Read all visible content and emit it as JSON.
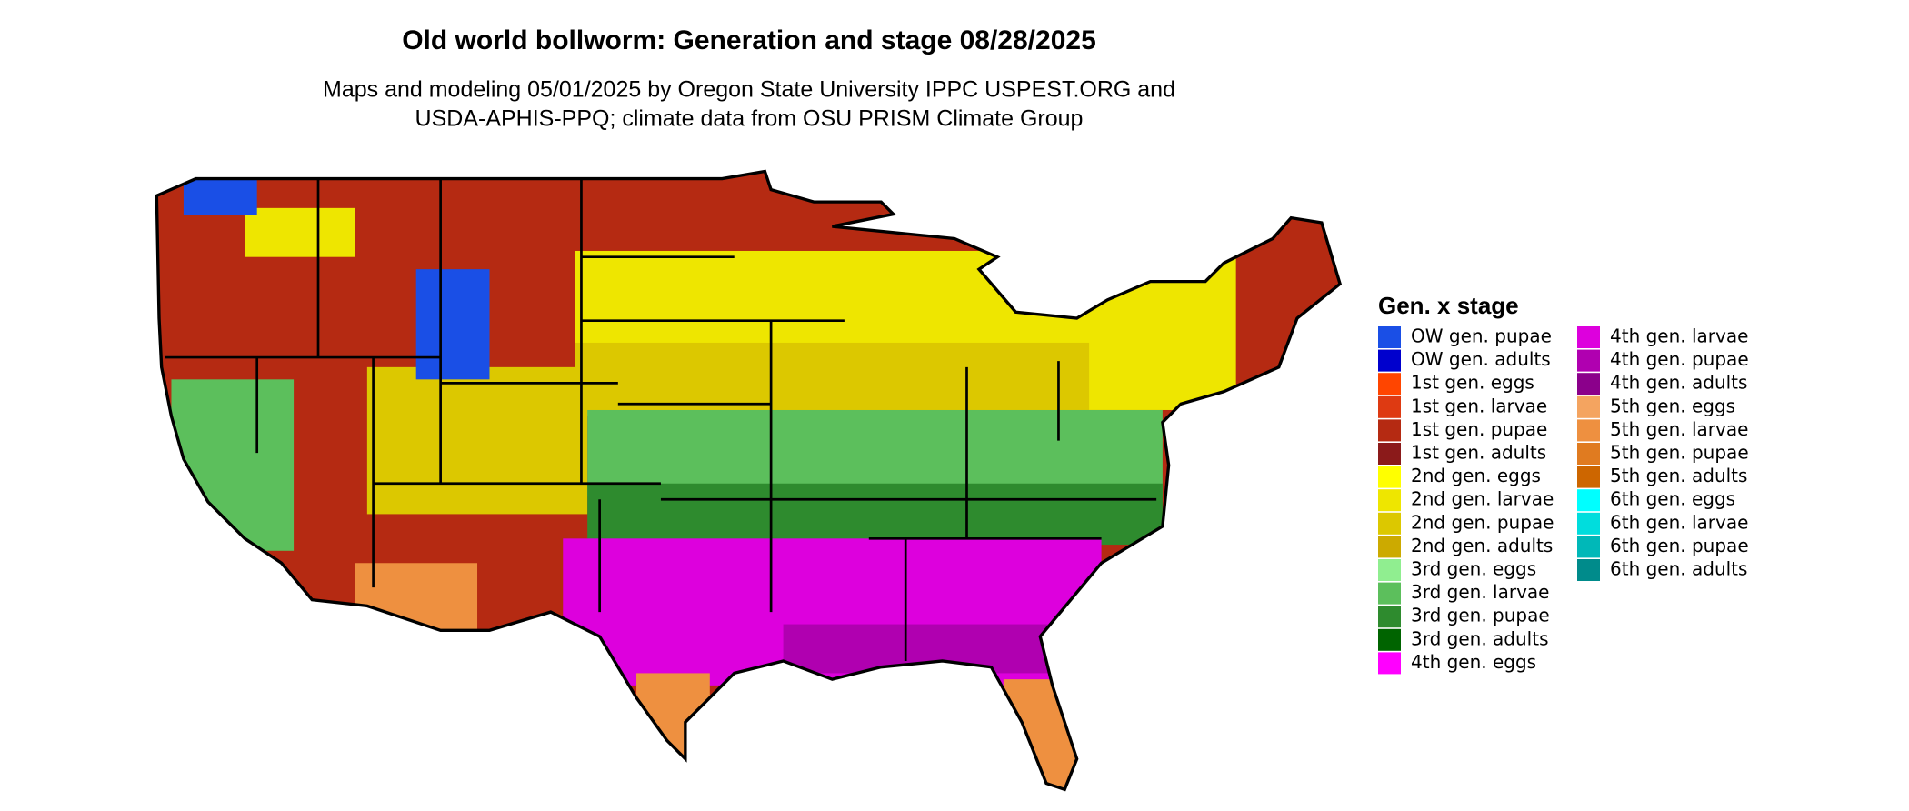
{
  "title": "Old world bollworm: Generation and stage 08/28/2025",
  "subtitle": [
    "Maps and modeling 05/01/2025 by Oregon State University IPPC USPEST.ORG and",
    "USDA-APHIS-PPQ; climate data from OSU PRISM Climate Group"
  ],
  "legend": {
    "title": "Gen. x stage",
    "items": [
      {
        "name": "OW gen. pupae",
        "color": "#1a4fe6"
      },
      {
        "name": "OW gen. adults",
        "color": "#0000cd"
      },
      {
        "name": "1st gen. eggs",
        "color": "#ff4500"
      },
      {
        "name": "1st gen. larvae",
        "color": "#de3a12"
      },
      {
        "name": "1st gen. pupae",
        "color": "#b52a12"
      },
      {
        "name": "1st gen. adults",
        "color": "#8b1a1a"
      },
      {
        "name": "2nd gen. eggs",
        "color": "#ffff00"
      },
      {
        "name": "2nd gen. larvae",
        "color": "#eee600"
      },
      {
        "name": "2nd gen. pupae",
        "color": "#dcc800"
      },
      {
        "name": "2nd gen. adults",
        "color": "#ccaa00"
      },
      {
        "name": "3rd gen. eggs",
        "color": "#90ee90"
      },
      {
        "name": "3rd gen. larvae",
        "color": "#5cbf5c"
      },
      {
        "name": "3rd gen. pupae",
        "color": "#2e8b2e"
      },
      {
        "name": "3rd gen. adults",
        "color": "#006400"
      },
      {
        "name": "4th gen. eggs",
        "color": "#ff00ff"
      },
      {
        "name": "4th gen. larvae",
        "color": "#dd00dd"
      },
      {
        "name": "4th gen. pupae",
        "color": "#b000b0"
      },
      {
        "name": "4th gen. adults",
        "color": "#8b008b"
      },
      {
        "name": "5th gen. eggs",
        "color": "#f4a460"
      },
      {
        "name": "5th gen. larvae",
        "color": "#ee9040"
      },
      {
        "name": "5th gen. pupae",
        "color": "#e07b20"
      },
      {
        "name": "5th gen. adults",
        "color": "#cd6600"
      },
      {
        "name": "6th gen. eggs",
        "color": "#00ffff"
      },
      {
        "name": "6th gen. larvae",
        "color": "#00dddd"
      },
      {
        "name": "6th gen. pupae",
        "color": "#00b8b8"
      },
      {
        "name": "6th gen. adults",
        "color": "#008b8b"
      }
    ]
  }
}
